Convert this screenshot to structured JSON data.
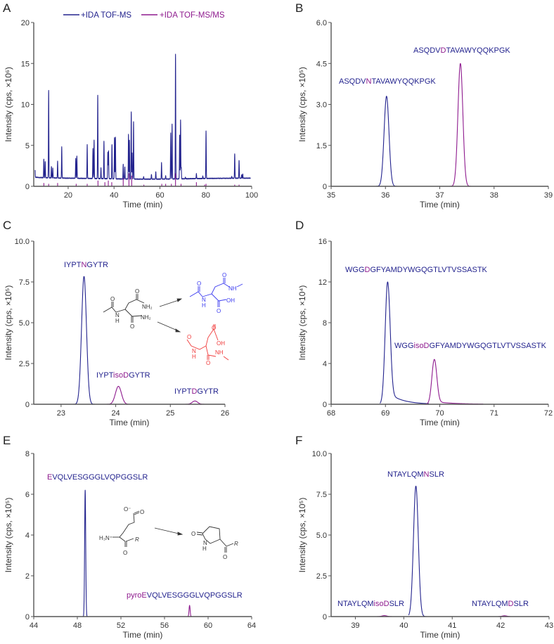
{
  "colors": {
    "ms": "#23238e",
    "msms": "#8e1a8e",
    "axis": "#555555",
    "blue_struct": "#3b3bf0",
    "red_struct": "#f03a3a",
    "gray_struct": "#333333"
  },
  "chart_data": [
    {
      "panel": "A",
      "type": "line",
      "legend": [
        {
          "name": "+IDA TOF-MS",
          "color_key": "ms"
        },
        {
          "name": "+IDA TOF-MS/MS",
          "color_key": "msms"
        }
      ],
      "legend_placement": "top",
      "xlabel": "Time (min)",
      "ylabel": "Intensity (cps, ×10⁶)",
      "xlim": [
        5,
        100
      ],
      "ylim": [
        0,
        20
      ],
      "xticks": [
        20,
        40,
        60,
        80,
        100
      ],
      "xtick_labels": [
        "20",
        "40",
        "60",
        "80",
        "100"
      ],
      "yticks": [
        0,
        5,
        10,
        15,
        20
      ],
      "ytick_labels": [
        "0",
        "5",
        "10",
        "15",
        "20"
      ],
      "series": [
        {
          "name": "+IDA TOF-MS",
          "color_key": "ms",
          "baseline": 1.0,
          "sigma": 0.09,
          "peaks": [
            [
              5.5,
              2.7
            ],
            [
              9.4,
              3.3
            ],
            [
              10,
              3.0
            ],
            [
              11.5,
              11.7
            ],
            [
              12.7,
              2.4
            ],
            [
              13.3,
              2.2
            ],
            [
              15.4,
              3.1
            ],
            [
              17.2,
              4.8
            ],
            [
              23.3,
              3.4
            ],
            [
              23.8,
              3.7
            ],
            [
              28.3,
              5.1
            ],
            [
              30.8,
              4.7
            ],
            [
              31.3,
              5.7
            ],
            [
              32.9,
              11.2
            ],
            [
              34.3,
              2.3
            ],
            [
              35.6,
              5.6
            ],
            [
              37.3,
              4.2
            ],
            [
              37.6,
              4.4
            ],
            [
              39.1,
              5.2
            ],
            [
              40.2,
              6.0
            ],
            [
              40.6,
              6.1
            ],
            [
              44.0,
              2.8
            ],
            [
              44.7,
              2.5
            ],
            [
              46.3,
              6.5
            ],
            [
              46.7,
              5.7
            ],
            [
              47.5,
              9.2
            ],
            [
              47.9,
              4.2
            ],
            [
              48.5,
              8.0
            ],
            [
              52.9,
              1.3
            ],
            [
              56.3,
              1.6
            ],
            [
              58.2,
              1.9
            ],
            [
              60.7,
              3.0
            ],
            [
              62.5,
              1.4
            ],
            [
              64.7,
              6.6
            ],
            [
              65.3,
              7.7
            ],
            [
              66.8,
              16.2
            ],
            [
              68.6,
              6.3
            ],
            [
              69.0,
              8.2
            ],
            [
              69.3,
              2.4
            ],
            [
              71.1,
              1.2
            ],
            [
              75.9,
              1.6
            ],
            [
              78.7,
              1.3
            ],
            [
              80.1,
              6.8
            ],
            [
              91.3,
              1.2
            ],
            [
              92.6,
              4.0
            ],
            [
              94.5,
              3.2
            ],
            [
              95.6,
              1.4
            ],
            [
              96.1,
              1.5
            ]
          ]
        },
        {
          "name": "+IDA TOF-MS/MS",
          "color_key": "msms",
          "type": "sticks",
          "peaks": [
            [
              9.4,
              0.4
            ],
            [
              11.5,
              0.3
            ],
            [
              15.4,
              0.4
            ],
            [
              23.5,
              0.3
            ],
            [
              28.3,
              0.3
            ],
            [
              33,
              0.7
            ],
            [
              36,
              0.5
            ],
            [
              37.5,
              0.7
            ],
            [
              39,
              0.5
            ],
            [
              44,
              1.0
            ],
            [
              46.5,
              1.6
            ],
            [
              47.7,
              1.3
            ],
            [
              53,
              0.2
            ],
            [
              60.8,
              0.3
            ],
            [
              62.5,
              0.3
            ],
            [
              65,
              0.3
            ],
            [
              66.8,
              1.6
            ],
            [
              69.2,
              0.3
            ],
            [
              75.9,
              0.5
            ],
            [
              79.5,
              0.2
            ],
            [
              80.1,
              0.3
            ],
            [
              92.6,
              0.2
            ],
            [
              94.5,
              0.2
            ]
          ]
        }
      ],
      "peak_labels": []
    },
    {
      "panel": "B",
      "type": "line",
      "xlabel": "Time (min)",
      "ylabel": "Intensity (cps, ×10⁵)",
      "xlim": [
        35,
        39
      ],
      "ylim": [
        0,
        6
      ],
      "xticks": [
        35,
        36,
        37,
        38,
        39
      ],
      "xtick_labels": [
        "35",
        "36",
        "37",
        "38",
        "39"
      ],
      "yticks": [
        0,
        1.5,
        3,
        4.5,
        6
      ],
      "ytick_labels": [
        "0",
        "1.5",
        "3.0",
        "4.5",
        "6.0"
      ],
      "series": [
        {
          "name": "ASQDVNTAVAWYQQKPGK",
          "color_key": "ms",
          "range": [
            35.7,
            36.6
          ],
          "peaks": [
            [
              36.02,
              3.3,
              0.045,
              0.0,
              0.1
            ]
          ]
        },
        {
          "name": "ASQDVDTAVAWYQQKPGK",
          "color_key": "msms",
          "range": [
            37.0,
            37.8
          ],
          "peaks": [
            [
              37.38,
              4.5,
              0.045,
              0.0,
              0.1
            ]
          ]
        }
      ],
      "peak_labels": [
        {
          "parts": [
            {
              "text": "ASQDV",
              "color_key": "ms"
            },
            {
              "text": "N",
              "color_key": "msms"
            },
            {
              "text": "TAVAWYQQKPGK",
              "color_key": "ms"
            }
          ]
        },
        {
          "parts": [
            {
              "text": "ASQDV",
              "color_key": "ms"
            },
            {
              "text": "D",
              "color_key": "msms"
            },
            {
              "text": "TAVAWYQQKPGK",
              "color_key": "ms"
            }
          ]
        }
      ]
    },
    {
      "panel": "C",
      "type": "line",
      "xlabel": "Time (min)",
      "ylabel": "Intensity (cps, ×10⁵)",
      "xlim": [
        22.5,
        26
      ],
      "ylim": [
        0,
        10
      ],
      "xticks": [
        23,
        24,
        25,
        26
      ],
      "xtick_labels": [
        "23",
        "24",
        "25",
        "26"
      ],
      "yticks": [
        0,
        2.5,
        5,
        7.5,
        10
      ],
      "ytick_labels": [
        "0",
        "2.5",
        "5.0",
        "7.5",
        "10.0"
      ],
      "series": [
        {
          "name": "IYPTNGYTR",
          "color_key": "ms",
          "range": [
            22.5,
            26
          ],
          "peaks": [
            [
              23.42,
              7.85,
              0.045,
              0.0,
              0.1
            ]
          ]
        },
        {
          "name": "IYPTisoDGYTR / IYPTDGYTR",
          "color_key": "msms",
          "range": [
            23.8,
            25.7
          ],
          "peaks": [
            [
              24.05,
              1.1,
              0.055,
              0.0,
              0.1
            ],
            [
              25.45,
              0.2,
              0.05,
              0.0,
              0.1
            ]
          ]
        }
      ],
      "peak_labels": [
        {
          "parts": [
            {
              "text": "IYPT",
              "color_key": "ms"
            },
            {
              "text": "N",
              "color_key": "msms"
            },
            {
              "text": "GYTR",
              "color_key": "ms"
            }
          ]
        },
        {
          "parts": [
            {
              "text": "IYPT",
              "color_key": "ms"
            },
            {
              "text": "isoD",
              "color_key": "msms"
            },
            {
              "text": "GYTR",
              "color_key": "ms"
            }
          ]
        },
        {
          "parts": [
            {
              "text": "IYPT",
              "color_key": "ms"
            },
            {
              "text": "D",
              "color_key": "msms"
            },
            {
              "text": "GYTR",
              "color_key": "ms"
            }
          ]
        }
      ]
    },
    {
      "panel": "D",
      "type": "line",
      "xlabel": "Time (min)",
      "ylabel": "Intensity (cps, ×10⁴)",
      "xlim": [
        68,
        72
      ],
      "ylim": [
        0,
        16
      ],
      "xticks": [
        68,
        69,
        70,
        71,
        72
      ],
      "xtick_labels": [
        "68",
        "69",
        "70",
        "71",
        "72"
      ],
      "yticks": [
        0,
        4,
        8,
        12,
        16
      ],
      "ytick_labels": [
        "0",
        "4",
        "8",
        "12",
        "16"
      ],
      "series": [
        {
          "name": "WGGDGFYAMDYWGQGTLVTVSSASTK",
          "color_key": "ms",
          "range": [
            68.9,
            69.8
          ],
          "peaks": [
            [
              69.04,
              12.0,
              0.045,
              0.1,
              0.25
            ]
          ]
        },
        {
          "name": "WGGisoDGFYAMDYWGQGTLVTVSSASTK",
          "color_key": "msms",
          "range": [
            69.7,
            70.8
          ],
          "peaks": [
            [
              69.9,
              4.4,
              0.045,
              0.06,
              0.35
            ]
          ]
        }
      ],
      "peak_labels": [
        {
          "parts": [
            {
              "text": "WGG",
              "color_key": "ms"
            },
            {
              "text": "D",
              "color_key": "msms"
            },
            {
              "text": "GFYAMDYWGQGTLVTVSSASTK",
              "color_key": "ms"
            }
          ]
        },
        {
          "parts": [
            {
              "text": "WGG",
              "color_key": "ms"
            },
            {
              "text": "isoD",
              "color_key": "msms"
            },
            {
              "text": "GFYAMDYWGQGTLVTVSSASTK",
              "color_key": "ms"
            }
          ]
        }
      ]
    },
    {
      "panel": "E",
      "type": "line",
      "xlabel": "Time (min)",
      "ylabel": "Intensity (cps, ×10⁵)",
      "xlim": [
        44,
        64
      ],
      "ylim": [
        0,
        8
      ],
      "xticks": [
        44,
        48,
        52,
        56,
        60,
        64
      ],
      "xtick_labels": [
        "44",
        "48",
        "52",
        "56",
        "60",
        "64"
      ],
      "yticks": [
        0,
        2,
        4,
        6,
        8
      ],
      "ytick_labels": [
        "0",
        "2",
        "4",
        "6",
        "8"
      ],
      "series": [
        {
          "name": "EVQLVESGGGLVQPGGSLR",
          "color_key": "ms",
          "range": [
            48.4,
            49.1
          ],
          "peaks": [
            [
              48.72,
              6.2,
              0.05,
              0.0,
              0.1
            ]
          ]
        },
        {
          "name": "pyroEVQLVESGGGLVQPGGSLR",
          "color_key": "msms",
          "range": [
            58.0,
            58.6
          ],
          "peaks": [
            [
              58.3,
              0.55,
              0.05,
              0.0,
              0.1
            ]
          ]
        }
      ],
      "peak_labels": [
        {
          "parts": [
            {
              "text": "E",
              "color_key": "msms"
            },
            {
              "text": "VQLVESGGGLVQPGGSLR",
              "color_key": "ms"
            }
          ]
        },
        {
          "parts": [
            {
              "text": "pyroE",
              "color_key": "msms"
            },
            {
              "text": "VQLVESGGGLVQPGGSLR",
              "color_key": "ms"
            }
          ]
        }
      ]
    },
    {
      "panel": "F",
      "type": "line",
      "xlabel": "Time (min)",
      "ylabel": "Intensity (cps, ×10⁵)",
      "xlim": [
        38.5,
        43
      ],
      "ylim": [
        0,
        10
      ],
      "xticks": [
        39,
        40,
        41,
        42,
        43
      ],
      "xtick_labels": [
        "39",
        "40",
        "41",
        "42",
        "43"
      ],
      "yticks": [
        0,
        2.5,
        5,
        7.5,
        10
      ],
      "ytick_labels": [
        "0",
        "2.5",
        "5.0",
        "7.5",
        "10.0"
      ],
      "series": [
        {
          "name": "NTAYLQMNSLR",
          "color_key": "ms",
          "range": [
            40.1,
            40.5
          ],
          "peaks": [
            [
              40.25,
              8.0,
              0.05,
              0.0,
              0.1
            ]
          ]
        },
        {
          "name": "NTAYLQMisoDSLR",
          "color_key": "msms",
          "range": [
            39.45,
            39.75
          ],
          "peaks": [
            [
              39.6,
              0.06,
              0.05,
              0.0,
              0.1
            ]
          ]
        },
        {
          "name": "NTAYLQMDSLR",
          "color_key": "msms",
          "range": [
            41.95,
            42.2
          ],
          "peaks": [
            [
              42.08,
              0.05,
              0.05,
              0.0,
              0.1
            ]
          ]
        }
      ],
      "peak_labels": [
        {
          "parts": [
            {
              "text": "NTAYLQM",
              "color_key": "ms"
            },
            {
              "text": "N",
              "color_key": "msms"
            },
            {
              "text": "SLR",
              "color_key": "ms"
            }
          ]
        },
        {
          "parts": [
            {
              "text": "NTAYLQM",
              "color_key": "ms"
            },
            {
              "text": "isoD",
              "color_key": "msms"
            },
            {
              "text": "SLR",
              "color_key": "ms"
            }
          ]
        },
        {
          "parts": [
            {
              "text": "NTAYLQM",
              "color_key": "ms"
            },
            {
              "text": "D",
              "color_key": "msms"
            },
            {
              "text": "SLR",
              "color_key": "ms"
            }
          ]
        }
      ]
    }
  ],
  "structures": {
    "asn": {
      "o1": "O",
      "o2": "O",
      "o3": "O",
      "nh2a": "NH₂",
      "nh2b": "NH₂",
      "n": "N",
      "h": "H"
    },
    "isoasp": {
      "o1": "O",
      "o2": "O",
      "o3": "O",
      "nh": "NH",
      "oh": "OH",
      "n": "N",
      "h": "H"
    },
    "asp": {
      "o1": "O",
      "o2": "O",
      "o3": "O",
      "nh": "NH",
      "oh": "OH",
      "n": "N",
      "h": "H"
    },
    "glu": {
      "ominus": "O⁻",
      "o1": "O",
      "o2": "O",
      "h3n": "H₃N⁺",
      "r": "R"
    },
    "pyroglu": {
      "o1": "O",
      "o2": "O",
      "n": "N",
      "h": "H",
      "r": "R"
    }
  }
}
